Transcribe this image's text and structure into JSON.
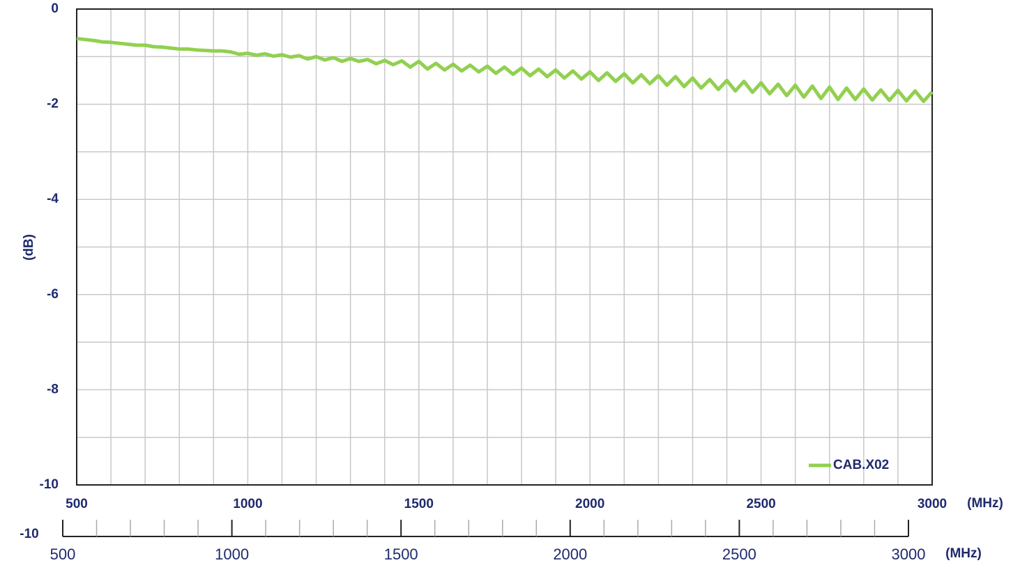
{
  "chart_data": {
    "type": "line",
    "y_label": "(dB)",
    "x_unit": "(MHz)",
    "xlim": [
      500,
      3000
    ],
    "xticks": [
      500,
      1000,
      1500,
      2000,
      2500,
      3000
    ],
    "xminorticks": [
      600,
      700,
      800,
      900,
      1100,
      1200,
      1300,
      1400,
      1600,
      1700,
      1800,
      1900,
      2100,
      2200,
      2300,
      2400,
      2600,
      2700,
      2800,
      2900
    ],
    "ylim": [
      -10,
      0
    ],
    "yticks": [
      0,
      -2,
      -4,
      -6,
      -8,
      -10
    ],
    "yminorticks": [
      -1,
      -3,
      -5,
      -7,
      -9
    ],
    "grid": true,
    "legend": "lower right",
    "x": [
      500,
      525,
      550,
      575,
      600,
      625,
      650,
      675,
      700,
      725,
      750,
      775,
      800,
      825,
      850,
      875,
      900,
      925,
      950,
      975,
      1000,
      1025,
      1050,
      1075,
      1100,
      1125,
      1150,
      1175,
      1200,
      1225,
      1250,
      1275,
      1300,
      1325,
      1350,
      1375,
      1400,
      1425,
      1450,
      1475,
      1500,
      1525,
      1550,
      1575,
      1600,
      1625,
      1650,
      1675,
      1700,
      1725,
      1750,
      1775,
      1800,
      1825,
      1850,
      1875,
      1900,
      1925,
      1950,
      1975,
      2000,
      2025,
      2050,
      2075,
      2100,
      2125,
      2150,
      2175,
      2200,
      2225,
      2250,
      2275,
      2300,
      2325,
      2350,
      2375,
      2400,
      2425,
      2450,
      2475,
      2500,
      2525,
      2550,
      2575,
      2600,
      2625,
      2650,
      2675,
      2700,
      2725,
      2750,
      2775,
      2800,
      2825,
      2850,
      2875,
      2900,
      2925,
      2950,
      2975,
      3000
    ],
    "series": [
      {
        "name": "CAB.X02",
        "color": "#92d050",
        "values": [
          -0.62,
          -0.64,
          -0.66,
          -0.69,
          -0.7,
          -0.72,
          -0.74,
          -0.76,
          -0.76,
          -0.79,
          -0.8,
          -0.82,
          -0.84,
          -0.84,
          -0.86,
          -0.87,
          -0.88,
          -0.88,
          -0.9,
          -0.95,
          -0.93,
          -0.97,
          -0.94,
          -0.99,
          -0.96,
          -1.01,
          -0.98,
          -1.05,
          -1.0,
          -1.07,
          -1.02,
          -1.1,
          -1.04,
          -1.1,
          -1.06,
          -1.15,
          -1.08,
          -1.17,
          -1.09,
          -1.22,
          -1.1,
          -1.26,
          -1.14,
          -1.28,
          -1.16,
          -1.3,
          -1.18,
          -1.32,
          -1.2,
          -1.35,
          -1.22,
          -1.37,
          -1.24,
          -1.4,
          -1.26,
          -1.42,
          -1.28,
          -1.45,
          -1.3,
          -1.47,
          -1.32,
          -1.5,
          -1.34,
          -1.52,
          -1.36,
          -1.55,
          -1.38,
          -1.57,
          -1.4,
          -1.6,
          -1.42,
          -1.63,
          -1.45,
          -1.66,
          -1.48,
          -1.69,
          -1.5,
          -1.72,
          -1.52,
          -1.75,
          -1.55,
          -1.78,
          -1.58,
          -1.82,
          -1.6,
          -1.85,
          -1.62,
          -1.88,
          -1.64,
          -1.9,
          -1.66,
          -1.9,
          -1.68,
          -1.91,
          -1.7,
          -1.92,
          -1.71,
          -1.93,
          -1.72,
          -1.94,
          -1.74
        ]
      }
    ],
    "extra_axis": {
      "left_label": "-10",
      "xlim": [
        500,
        3000
      ],
      "xticks": [
        500,
        1000,
        1500,
        2000,
        2500,
        3000
      ],
      "xminorticks": [
        600,
        700,
        800,
        900,
        1100,
        1200,
        1300,
        1400,
        1600,
        1700,
        1800,
        1900,
        2100,
        2200,
        2300,
        2400,
        2600,
        2700,
        2800,
        2900
      ]
    }
  }
}
